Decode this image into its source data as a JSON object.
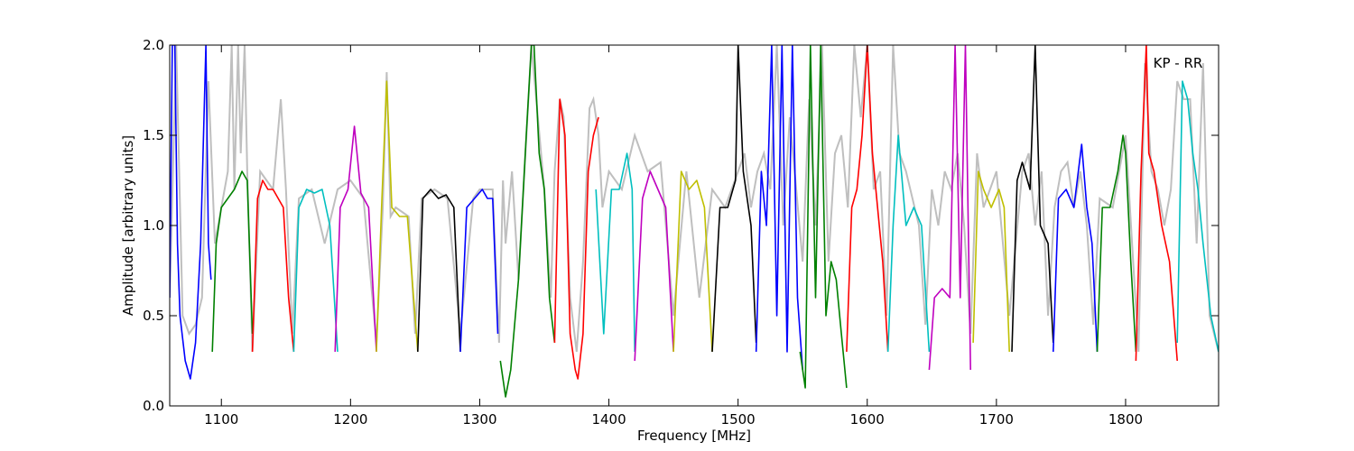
{
  "chart_data": {
    "type": "line",
    "annotation": "KP - RR",
    "xlabel": "Frequency [MHz]",
    "ylabel": "Amplitude [arbitrary units]",
    "xlim": [
      1060,
      1872
    ],
    "ylim": [
      0.0,
      2.0
    ],
    "xticks": [
      1100,
      1200,
      1300,
      1400,
      1500,
      1600,
      1700,
      1800
    ],
    "yticks": [
      0.0,
      0.5,
      1.0,
      1.5,
      2.0
    ],
    "xtick_labels": [
      "1100",
      "1200",
      "1300",
      "1400",
      "1500",
      "1600",
      "1700",
      "1800"
    ],
    "ytick_labels": [
      "0.0",
      "0.5",
      "1.0",
      "1.5",
      "2.0"
    ],
    "grid": false,
    "background_series": {
      "color": "#bfbfbf",
      "x": [
        1060,
        1065,
        1070,
        1075,
        1080,
        1085,
        1090,
        1095,
        1100,
        1105,
        1108,
        1110,
        1113,
        1115,
        1118,
        1120,
        1124,
        1130,
        1135,
        1140,
        1146,
        1150,
        1155,
        1160,
        1170,
        1180,
        1190,
        1200,
        1210,
        1220,
        1225,
        1228,
        1231,
        1235,
        1245,
        1250,
        1255,
        1265,
        1275,
        1285,
        1295,
        1300,
        1310,
        1315,
        1318,
        1320,
        1325,
        1330,
        1340,
        1350,
        1355,
        1358,
        1362,
        1365,
        1370,
        1375,
        1380,
        1385,
        1388,
        1392,
        1395,
        1400,
        1410,
        1420,
        1430,
        1440,
        1450,
        1460,
        1470,
        1480,
        1490,
        1500,
        1505,
        1510,
        1515,
        1520,
        1525,
        1530,
        1535,
        1540,
        1545,
        1550,
        1555,
        1560,
        1565,
        1570,
        1575,
        1580,
        1585,
        1590,
        1595,
        1600,
        1605,
        1610,
        1615,
        1620,
        1625,
        1630,
        1640,
        1645,
        1650,
        1655,
        1660,
        1665,
        1670,
        1675,
        1680,
        1685,
        1690,
        1700,
        1710,
        1720,
        1725,
        1730,
        1735,
        1740,
        1745,
        1750,
        1755,
        1760,
        1765,
        1770,
        1775,
        1780,
        1790,
        1800,
        1810,
        1815,
        1820,
        1825,
        1830,
        1835,
        1840,
        1845,
        1850,
        1855,
        1860,
        1865,
        1872
      ],
      "y": [
        0.6,
        2.0,
        0.5,
        0.4,
        0.45,
        0.6,
        1.8,
        0.9,
        1.1,
        1.3,
        2.0,
        1.2,
        2.0,
        1.4,
        2.0,
        1.3,
        0.3,
        1.3,
        1.25,
        1.2,
        1.7,
        1.2,
        0.4,
        1.15,
        1.2,
        0.9,
        1.2,
        1.25,
        1.15,
        0.35,
        1.1,
        1.85,
        1.05,
        1.1,
        1.05,
        0.4,
        1.15,
        1.2,
        1.15,
        0.4,
        1.15,
        1.2,
        1.2,
        0.35,
        1.25,
        0.9,
        1.3,
        0.7,
        2.0,
        1.2,
        0.6,
        1.3,
        1.7,
        1.6,
        0.6,
        0.3,
        0.8,
        1.65,
        1.7,
        1.5,
        1.1,
        1.3,
        1.2,
        1.5,
        1.3,
        1.35,
        0.5,
        1.3,
        0.6,
        1.2,
        1.1,
        1.3,
        1.4,
        1.1,
        1.3,
        1.4,
        1.2,
        2.0,
        1.0,
        1.6,
        1.2,
        0.8,
        1.7,
        1.0,
        2.0,
        0.8,
        1.4,
        1.5,
        1.1,
        2.0,
        1.6,
        2.0,
        1.2,
        1.3,
        0.5,
        2.0,
        1.4,
        1.3,
        1.0,
        0.45,
        1.2,
        1.0,
        1.3,
        1.2,
        1.4,
        1.0,
        0.4,
        1.4,
        1.1,
        1.3,
        0.5,
        1.3,
        1.4,
        1.0,
        1.3,
        0.5,
        1.1,
        1.3,
        1.35,
        1.1,
        1.3,
        1.0,
        0.45,
        1.15,
        1.1,
        1.5,
        0.3,
        1.9,
        1.3,
        1.2,
        1.0,
        1.2,
        1.8,
        1.7,
        1.7,
        0.9,
        1.9,
        0.5,
        0.3
      ]
    },
    "series": [
      {
        "color": "#0000ff",
        "x": [
          1060,
          1062,
          1064,
          1066,
          1068,
          1072,
          1076,
          1080,
          1084,
          1088,
          1090,
          1092
        ],
        "y": [
          0.6,
          2.0,
          2.0,
          0.9,
          0.5,
          0.25,
          0.15,
          0.35,
          0.9,
          2.0,
          0.9,
          0.7
        ]
      },
      {
        "color": "#008000",
        "x": [
          1093,
          1096,
          1100,
          1105,
          1110,
          1116,
          1120,
          1124
        ],
        "y": [
          0.3,
          0.9,
          1.1,
          1.15,
          1.2,
          1.3,
          1.25,
          0.4
        ]
      },
      {
        "color": "#ff0000",
        "x": [
          1124,
          1128,
          1132,
          1136,
          1140,
          1148,
          1152,
          1156
        ],
        "y": [
          0.3,
          1.15,
          1.25,
          1.2,
          1.2,
          1.1,
          0.6,
          0.3
        ]
      },
      {
        "color": "#00bfbf",
        "x": [
          1156,
          1160,
          1166,
          1172,
          1178,
          1184,
          1190
        ],
        "y": [
          0.3,
          1.1,
          1.2,
          1.18,
          1.2,
          1.0,
          0.3
        ]
      },
      {
        "color": "#bf00bf",
        "x": [
          1188,
          1192,
          1198,
          1203,
          1208,
          1214,
          1220
        ],
        "y": [
          0.3,
          1.1,
          1.2,
          1.55,
          1.18,
          1.1,
          0.3
        ]
      },
      {
        "color": "#bfbf00",
        "x": [
          1220,
          1224,
          1228,
          1232,
          1238,
          1244,
          1252
        ],
        "y": [
          0.3,
          1.1,
          1.8,
          1.1,
          1.05,
          1.05,
          0.3
        ]
      },
      {
        "color": "#000000",
        "x": [
          1252,
          1256,
          1262,
          1268,
          1274,
          1280,
          1285
        ],
        "y": [
          0.3,
          1.15,
          1.2,
          1.15,
          1.17,
          1.1,
          0.3
        ]
      },
      {
        "color": "#0000ff",
        "x": [
          1285,
          1290,
          1296,
          1302,
          1306,
          1310,
          1314
        ],
        "y": [
          0.3,
          1.1,
          1.15,
          1.2,
          1.15,
          1.15,
          0.4
        ]
      },
      {
        "color": "#008000",
        "x": [
          1316,
          1320,
          1324,
          1330,
          1336,
          1340,
          1342,
          1346,
          1350,
          1354,
          1358
        ],
        "y": [
          0.25,
          0.05,
          0.2,
          0.7,
          1.5,
          2.0,
          2.0,
          1.4,
          1.2,
          0.6,
          0.35
        ]
      },
      {
        "color": "#ff0000",
        "x": [
          1358,
          1362,
          1366,
          1370,
          1374,
          1376,
          1380,
          1384,
          1388,
          1392
        ],
        "y": [
          0.35,
          1.7,
          1.5,
          0.4,
          0.2,
          0.15,
          0.4,
          1.3,
          1.5,
          1.6
        ]
      },
      {
        "color": "#00bfbf",
        "x": [
          1390,
          1396,
          1402,
          1408,
          1414,
          1418,
          1420
        ],
        "y": [
          1.2,
          0.4,
          1.2,
          1.2,
          1.4,
          1.2,
          0.3
        ]
      },
      {
        "color": "#bf00bf",
        "x": [
          1420,
          1426,
          1432,
          1438,
          1444,
          1450
        ],
        "y": [
          0.25,
          1.15,
          1.3,
          1.2,
          1.1,
          0.3
        ]
      },
      {
        "color": "#bfbf00",
        "x": [
          1450,
          1456,
          1462,
          1468,
          1474,
          1480
        ],
        "y": [
          0.3,
          1.3,
          1.2,
          1.25,
          1.1,
          0.3
        ]
      },
      {
        "color": "#000000",
        "x": [
          1480,
          1486,
          1492,
          1498,
          1500,
          1504,
          1510,
          1514
        ],
        "y": [
          0.3,
          1.1,
          1.1,
          1.25,
          2.0,
          1.3,
          1.0,
          0.35
        ]
      },
      {
        "color": "#0000ff",
        "x": [
          1514,
          1518,
          1522,
          1526,
          1530,
          1534,
          1538,
          1542,
          1546,
          1550
        ],
        "y": [
          0.3,
          1.3,
          1.0,
          2.0,
          0.5,
          2.0,
          0.3,
          2.0,
          0.6,
          0.2
        ]
      },
      {
        "color": "#008000",
        "x": [
          1548,
          1552,
          1556,
          1560,
          1564,
          1568,
          1572,
          1576,
          1580,
          1584
        ],
        "y": [
          0.3,
          0.1,
          2.0,
          0.6,
          2.0,
          0.5,
          0.8,
          0.7,
          0.4,
          0.1
        ]
      },
      {
        "color": "#ff0000",
        "x": [
          1584,
          1588,
          1592,
          1596,
          1600,
          1604,
          1608,
          1612,
          1616
        ],
        "y": [
          0.3,
          1.1,
          1.2,
          1.5,
          2.0,
          1.4,
          1.1,
          0.8,
          0.3
        ]
      },
      {
        "color": "#00bfbf",
        "x": [
          1616,
          1620,
          1624,
          1630,
          1636,
          1642,
          1648
        ],
        "y": [
          0.3,
          1.0,
          1.5,
          1.0,
          1.1,
          1.0,
          0.3
        ]
      },
      {
        "color": "#bf00bf",
        "x": [
          1648,
          1652,
          1658,
          1664,
          1668,
          1672,
          1676,
          1680
        ],
        "y": [
          0.2,
          0.6,
          0.65,
          0.6,
          2.0,
          0.6,
          2.0,
          0.2
        ]
      },
      {
        "color": "#bfbf00",
        "x": [
          1682,
          1686,
          1690,
          1696,
          1702,
          1706,
          1710
        ],
        "y": [
          0.35,
          1.3,
          1.2,
          1.1,
          1.2,
          1.1,
          0.3
        ]
      },
      {
        "color": "#000000",
        "x": [
          1712,
          1716,
          1720,
          1726,
          1730,
          1734,
          1740,
          1744
        ],
        "y": [
          0.3,
          1.25,
          1.35,
          1.2,
          2.0,
          1.0,
          0.9,
          0.35
        ]
      },
      {
        "color": "#0000ff",
        "x": [
          1744,
          1748,
          1754,
          1760,
          1766,
          1770,
          1774,
          1778
        ],
        "y": [
          0.3,
          1.15,
          1.2,
          1.1,
          1.45,
          1.1,
          0.9,
          0.3
        ]
      },
      {
        "color": "#008000",
        "x": [
          1778,
          1782,
          1788,
          1794,
          1798,
          1800,
          1804,
          1808
        ],
        "y": [
          0.3,
          1.1,
          1.1,
          1.3,
          1.5,
          1.4,
          0.8,
          0.3
        ]
      },
      {
        "color": "#ff0000",
        "x": [
          1808,
          1812,
          1816,
          1818,
          1822,
          1828,
          1834,
          1840
        ],
        "y": [
          0.25,
          1.3,
          2.0,
          1.4,
          1.3,
          1.0,
          0.8,
          0.25
        ]
      },
      {
        "color": "#00bfbf",
        "x": [
          1840,
          1844,
          1848,
          1852,
          1856,
          1860,
          1866,
          1872
        ],
        "y": [
          0.35,
          1.8,
          1.7,
          1.4,
          1.2,
          0.9,
          0.5,
          0.3
        ]
      }
    ]
  }
}
